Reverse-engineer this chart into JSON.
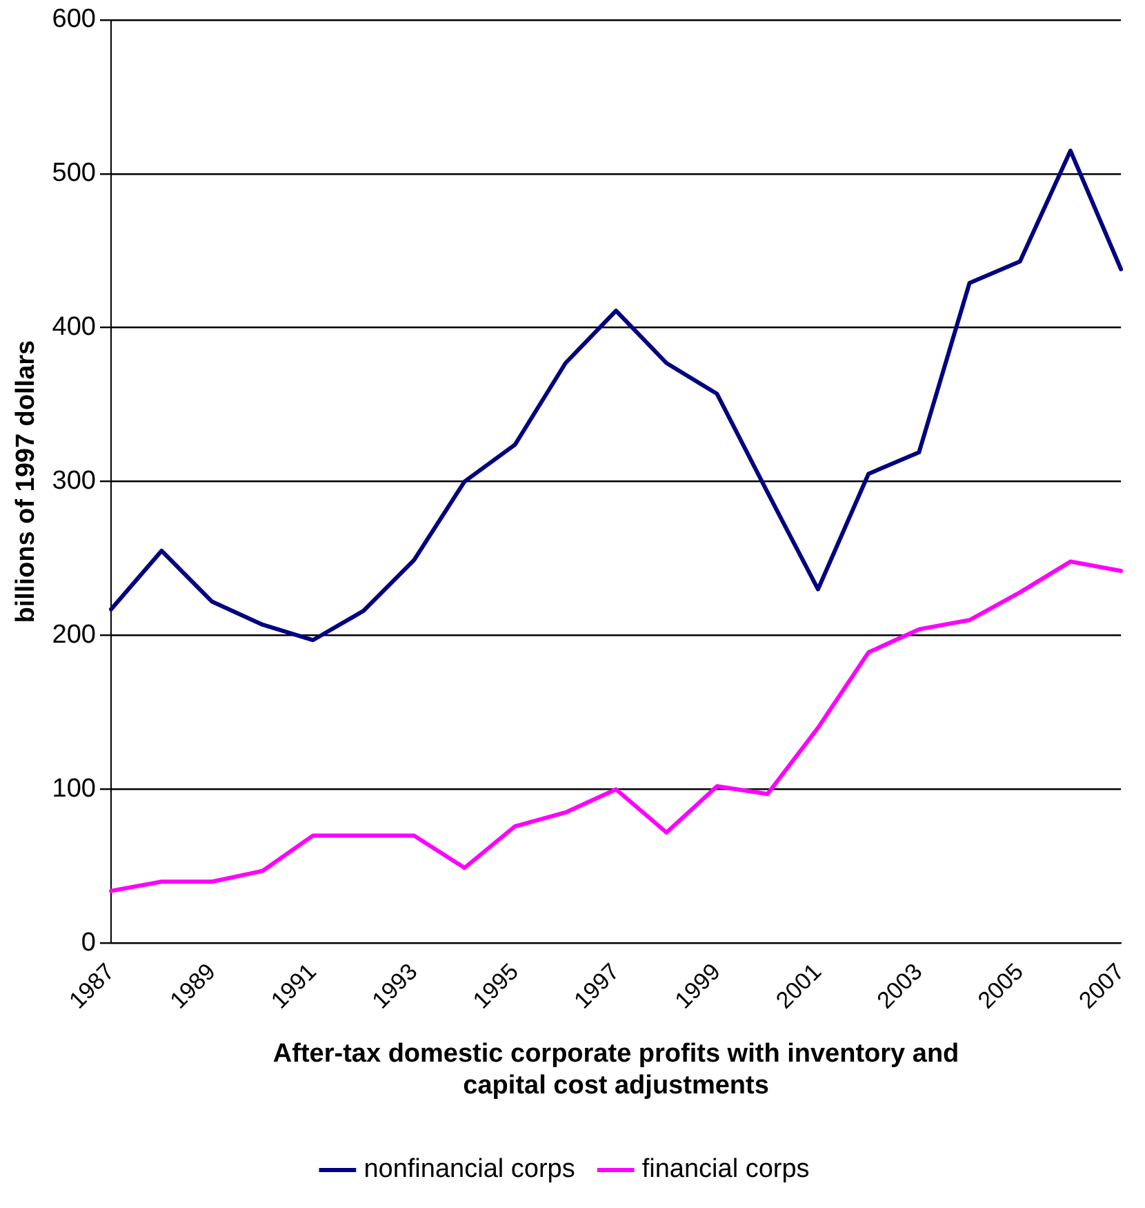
{
  "chart_data": {
    "type": "line",
    "ylabel": "billions of 1997 dollars",
    "xlabel": "After-tax domestic corporate profits with inventory and capital cost adjustments",
    "categories": [
      "1987",
      null,
      "1989",
      null,
      "1991",
      null,
      "1993",
      null,
      "1995",
      null,
      "1997",
      null,
      "1999",
      null,
      "2001",
      null,
      "2003",
      null,
      "2005",
      null,
      "2007"
    ],
    "series": [
      {
        "name": "nonfinancial corps",
        "color": "#000080",
        "values": [
          217,
          255,
          222,
          207,
          197,
          216,
          249,
          300,
          324,
          377,
          411,
          377,
          357,
          293,
          230,
          305,
          319,
          429,
          443,
          515,
          438
        ]
      },
      {
        "name": "financial corps",
        "color": "#ff00ff",
        "values": [
          34,
          40,
          40,
          47,
          70,
          70,
          70,
          49,
          76,
          85,
          100,
          72,
          102,
          97,
          140,
          189,
          204,
          210,
          228,
          248,
          242
        ]
      }
    ],
    "ylim": [
      0,
      600
    ],
    "yticks": [
      0,
      100,
      200,
      300,
      400,
      500,
      600
    ],
    "grid": "y",
    "legend": "bottom",
    "marker": "none",
    "line_style": "solid"
  }
}
